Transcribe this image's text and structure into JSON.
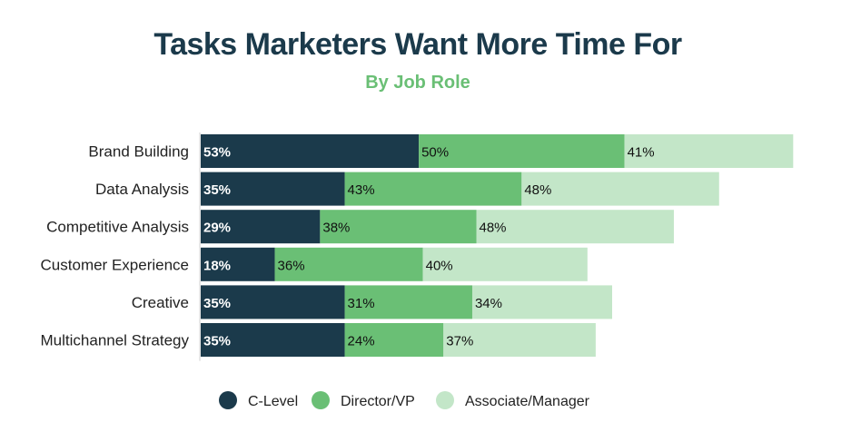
{
  "chart_data": {
    "type": "bar",
    "orientation": "horizontal",
    "stacked": true,
    "title": "Tasks Marketers Want More Time For",
    "subtitle": "By Job Role",
    "categories": [
      "Brand Building",
      "Data Analysis",
      "Competitive Analysis",
      "Customer Experience",
      "Creative",
      "Multichannel Strategy"
    ],
    "series": [
      {
        "name": "C-Level",
        "color": "#1b3a4b",
        "values": [
          53,
          35,
          29,
          18,
          35,
          35
        ]
      },
      {
        "name": "Director/VP",
        "color": "#6abf75",
        "values": [
          50,
          43,
          38,
          36,
          31,
          24
        ]
      },
      {
        "name": "Associate/Manager",
        "color": "#c3e6c8",
        "values": [
          41,
          48,
          48,
          40,
          34,
          37
        ]
      }
    ],
    "value_suffix": "%",
    "grid": false,
    "legend_position": "bottom"
  }
}
